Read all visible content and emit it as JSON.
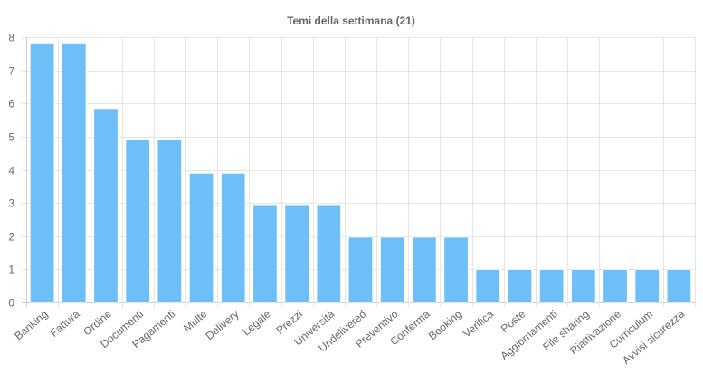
{
  "chart_data": {
    "type": "bar",
    "title": "Temi della settimana (21)",
    "xlabel": "",
    "ylabel": "",
    "ylim": [
      0,
      8
    ],
    "yticks": [
      0,
      1,
      2,
      3,
      4,
      5,
      6,
      7,
      8
    ],
    "grid": true,
    "categories": [
      "Banking",
      "Fattura",
      "Ordine",
      "Documenti",
      "Pagamenti",
      "Multe",
      "Delivery",
      "Legale",
      "Prezzi",
      "Università",
      "Undelivered",
      "Preventivo",
      "Conferma",
      "Booking",
      "Verifica",
      "Poste",
      "Aggiornamenti",
      "File sharing",
      "Riattivazione",
      "Curriculum",
      "Avvisi sicurezza"
    ],
    "values": [
      7.8,
      7.8,
      5.85,
      4.9,
      4.9,
      3.9,
      3.9,
      2.95,
      2.95,
      2.95,
      1.97,
      1.97,
      1.97,
      1.97,
      1.0,
      1.0,
      1.0,
      1.0,
      1.0,
      1.0,
      1.0
    ],
    "colors": {
      "bar": "#6ebef8",
      "bar_border": "#ffffff",
      "grid": "#e5e5e5",
      "axis": "#cccccc",
      "text": "#666666"
    }
  }
}
